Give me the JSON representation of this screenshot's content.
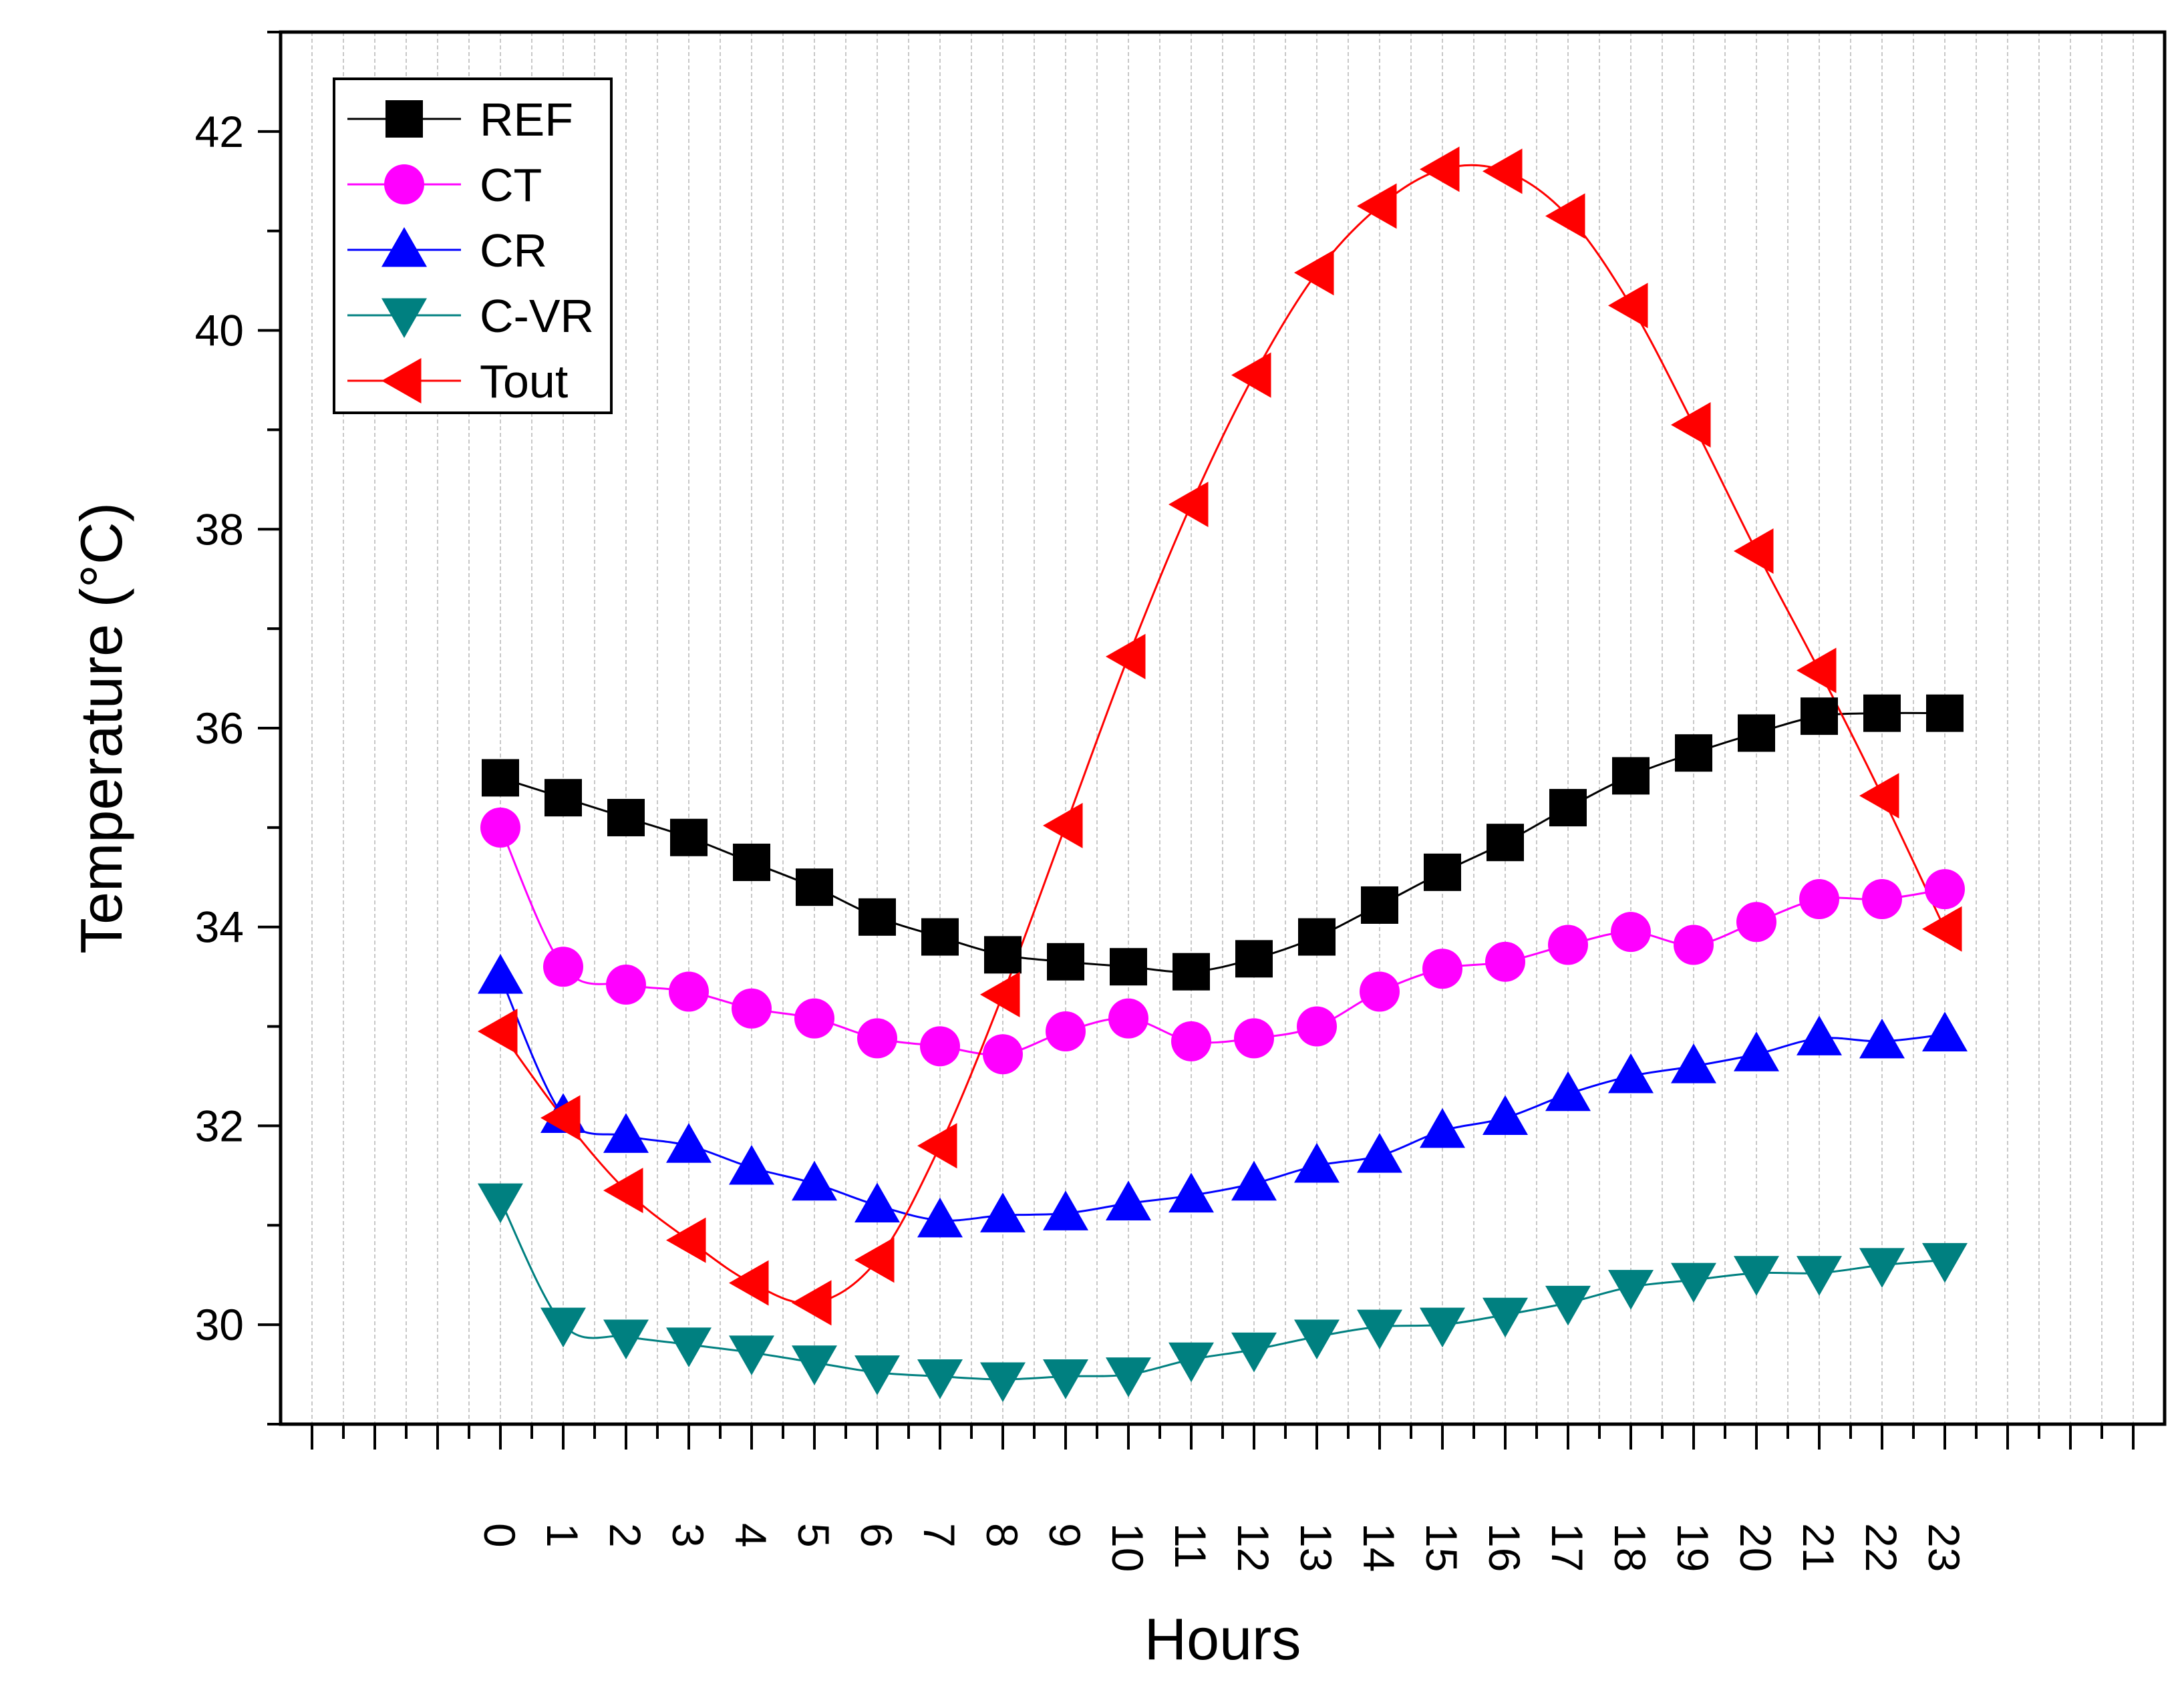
{
  "chart_data": {
    "type": "line",
    "title": "",
    "xlabel": "Hours",
    "ylabel": "Temperature (°C)",
    "x": [
      0,
      1,
      2,
      3,
      4,
      5,
      6,
      7,
      8,
      9,
      10,
      11,
      12,
      13,
      14,
      15,
      16,
      17,
      18,
      19,
      20,
      21,
      22,
      23
    ],
    "x_tick_labels": [
      "0",
      "1",
      "2",
      "3",
      "4",
      "5",
      "6",
      "7",
      "8",
      "9",
      "10",
      "11",
      "12",
      "13",
      "14",
      "15",
      "16",
      "17",
      "18",
      "19",
      "20",
      "21",
      "22",
      "23"
    ],
    "xlim": [
      -3.5,
      26.5
    ],
    "ylim": [
      29,
      43
    ],
    "y_ticks": [
      30,
      32,
      34,
      36,
      38,
      40,
      42
    ],
    "y_tick_labels": [
      "30",
      "32",
      "34",
      "36",
      "38",
      "40",
      "42"
    ],
    "grid": "vertical minor gridlines (light gray)",
    "legend_position": "top-left",
    "series": [
      {
        "name": "REF",
        "color": "#000000",
        "marker": "square",
        "values": [
          35.5,
          35.3,
          35.1,
          34.9,
          34.65,
          34.4,
          34.1,
          33.9,
          33.72,
          33.65,
          33.6,
          33.55,
          33.68,
          33.9,
          34.22,
          34.55,
          34.85,
          35.2,
          35.52,
          35.75,
          35.95,
          36.12,
          36.15,
          36.15
        ]
      },
      {
        "name": "CT",
        "color": "#ff00ff",
        "marker": "circle",
        "values": [
          35.0,
          33.6,
          33.42,
          33.35,
          33.18,
          33.08,
          32.88,
          32.8,
          32.72,
          32.95,
          33.08,
          32.85,
          32.88,
          33.0,
          33.35,
          33.58,
          33.65,
          33.82,
          33.95,
          33.82,
          34.05,
          34.28,
          34.28,
          34.38
        ]
      },
      {
        "name": "CR",
        "color": "#0000ff",
        "marker": "triangle-up",
        "values": [
          33.5,
          32.1,
          31.9,
          31.8,
          31.58,
          31.42,
          31.2,
          31.05,
          31.1,
          31.12,
          31.22,
          31.3,
          31.42,
          31.6,
          31.7,
          31.95,
          32.08,
          32.32,
          32.5,
          32.6,
          32.72,
          32.88,
          32.85,
          32.92
        ]
      },
      {
        "name": "C-VR",
        "color": "#008080",
        "marker": "triangle-down",
        "values": [
          31.25,
          30.0,
          29.88,
          29.8,
          29.72,
          29.62,
          29.52,
          29.48,
          29.45,
          29.48,
          29.5,
          29.65,
          29.75,
          29.88,
          29.98,
          30.0,
          30.1,
          30.22,
          30.38,
          30.45,
          30.52,
          30.52,
          30.6,
          30.65
        ]
      },
      {
        "name": "Tout",
        "color": "#ff0000",
        "marker": "triangle-left",
        "values": [
          32.95,
          32.08,
          31.35,
          30.85,
          30.42,
          30.22,
          30.65,
          31.8,
          33.32,
          35.02,
          36.72,
          38.25,
          39.55,
          40.58,
          41.25,
          41.62,
          41.6,
          41.15,
          40.25,
          39.05,
          37.78,
          36.58,
          35.32,
          33.98
        ]
      }
    ]
  }
}
